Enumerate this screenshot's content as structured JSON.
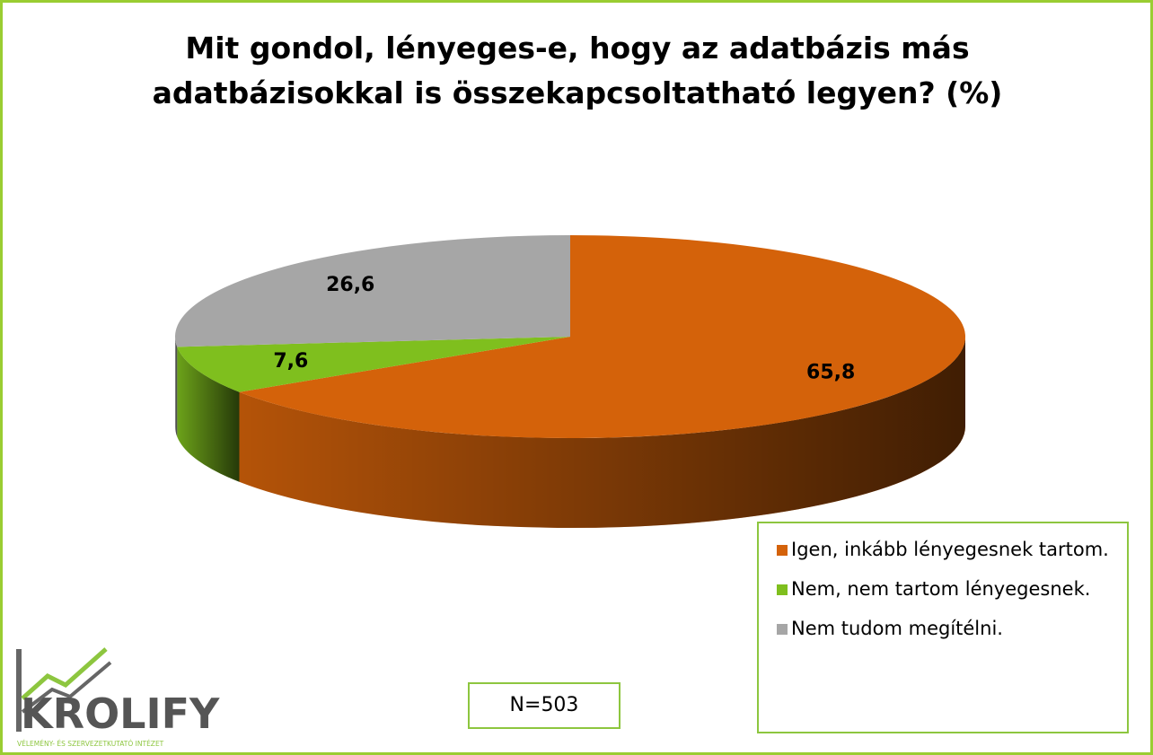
{
  "chart_data": {
    "type": "pie3d",
    "title": "Mit gondol, lényeges-e, hogy az adatbázis más adatbázisokkal is összekapcsoltatható legyen? (%)",
    "categories": [
      "Igen, inkább lényegesnek tartom.",
      "Nem, nem tartom lényegesnek.",
      "Nem tudom megítélni."
    ],
    "values": [
      65.8,
      7.6,
      26.6
    ],
    "value_labels": [
      "65,8",
      "7,6",
      "26,6"
    ],
    "colors": [
      "#d4620a",
      "#7fbf1e",
      "#a6a6a6"
    ],
    "legend": "bottom-right",
    "annotation": "N=503"
  },
  "logo": {
    "name": "KROLIFY",
    "tagline": "VÉLEMÉNY- ÉS SZERVEZETKUTATÓ INTÉZET"
  }
}
